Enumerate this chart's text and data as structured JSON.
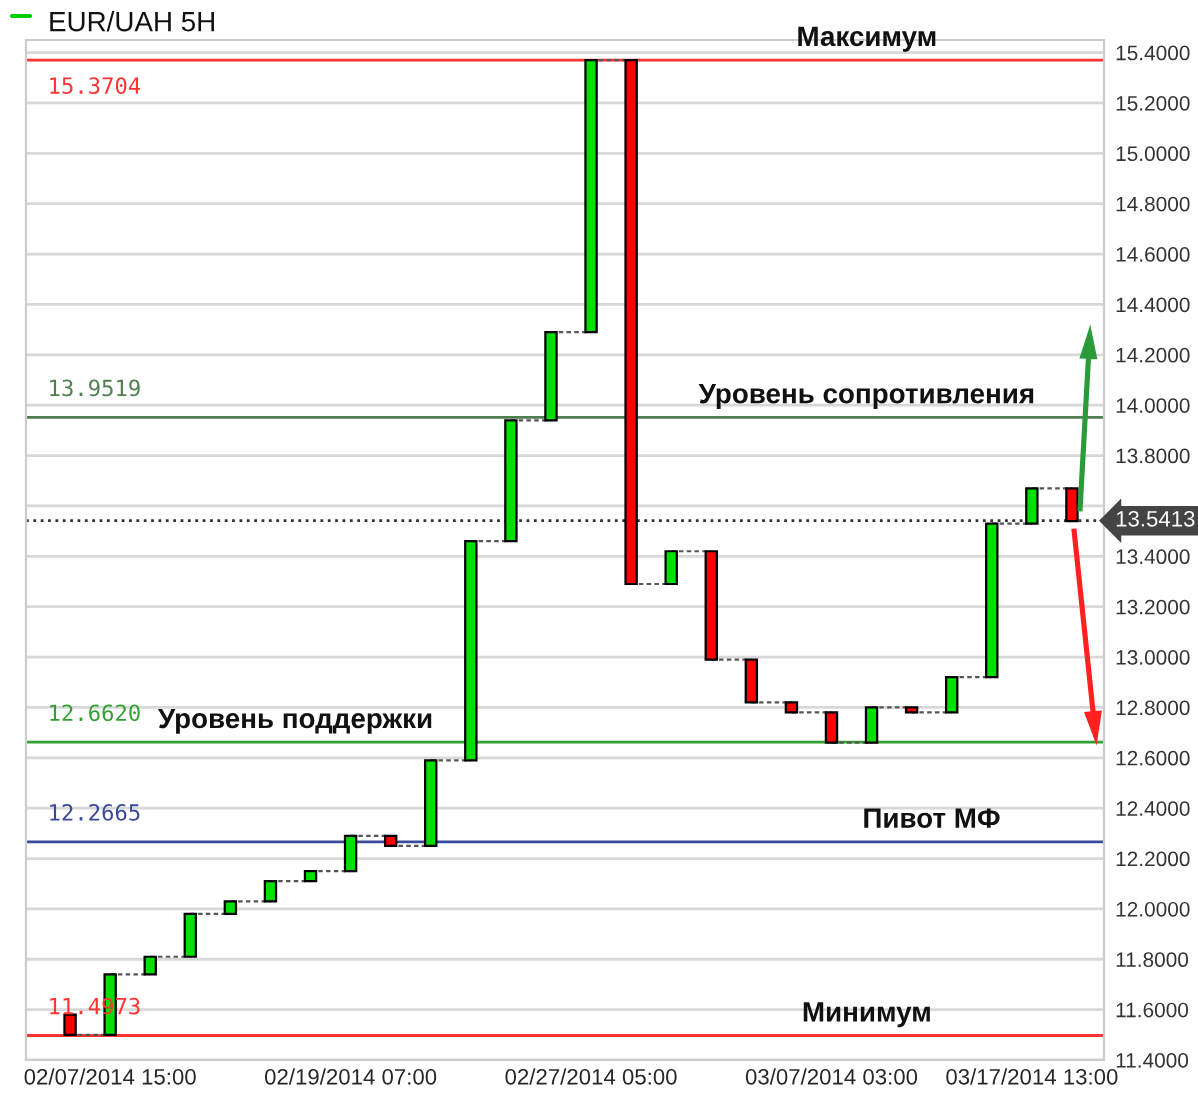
{
  "chart_data": {
    "type": "candlestick",
    "title": "EUR/UAH 5H",
    "categories": [
      null,
      "02/07/2014 15:00",
      null,
      null,
      null,
      null,
      null,
      "02/19/2014 07:00",
      null,
      null,
      null,
      null,
      null,
      "02/27/2014 05:00",
      null,
      null,
      null,
      null,
      null,
      "03/07/2014 03:00",
      null,
      null,
      null,
      null,
      "03/17/2014 13:00",
      null
    ],
    "ohlc": [
      [
        11.58,
        11.58,
        11.5,
        11.5
      ],
      [
        11.5,
        11.74,
        11.5,
        11.74
      ],
      [
        11.74,
        11.81,
        11.74,
        11.81
      ],
      [
        11.81,
        11.98,
        11.81,
        11.98
      ],
      [
        11.98,
        12.03,
        11.98,
        12.03
      ],
      [
        12.03,
        12.11,
        12.03,
        12.11
      ],
      [
        12.11,
        12.15,
        12.11,
        12.15
      ],
      [
        12.15,
        12.29,
        12.15,
        12.29
      ],
      [
        12.29,
        12.29,
        12.25,
        12.25
      ],
      [
        12.25,
        12.59,
        12.25,
        12.59
      ],
      [
        12.59,
        13.46,
        12.59,
        13.46
      ],
      [
        13.46,
        13.94,
        13.46,
        13.94
      ],
      [
        13.94,
        14.29,
        13.94,
        14.29
      ],
      [
        14.29,
        15.37,
        14.29,
        15.37
      ],
      [
        15.37,
        15.37,
        13.29,
        13.29
      ],
      [
        13.29,
        13.42,
        13.29,
        13.42
      ],
      [
        13.42,
        13.42,
        12.99,
        12.99
      ],
      [
        12.99,
        12.99,
        12.82,
        12.82
      ],
      [
        12.82,
        12.82,
        12.78,
        12.78
      ],
      [
        12.78,
        12.78,
        12.66,
        12.66
      ],
      [
        12.66,
        12.8,
        12.66,
        12.8
      ],
      [
        12.8,
        12.8,
        12.78,
        12.78
      ],
      [
        12.78,
        12.92,
        12.78,
        12.92
      ],
      [
        12.92,
        13.53,
        12.92,
        13.53
      ],
      [
        13.53,
        13.67,
        13.53,
        13.67
      ],
      [
        13.67,
        13.67,
        13.54,
        13.54
      ]
    ],
    "colors": [
      "#ff0000",
      "#00e000",
      "#00e000",
      "#00e000",
      "#00e000",
      "#00e000",
      "#00e000",
      "#00e000",
      "#ff0000",
      "#00e000",
      "#00e000",
      "#00e000",
      "#00e000",
      "#00e000",
      "#ff0000",
      "#00e000",
      "#ff0000",
      "#ff0000",
      "#ff0000",
      "#ff0000",
      "#00e000",
      "#ff0000",
      "#00e000",
      "#00e000",
      "#00e000",
      "#ff0000"
    ],
    "ylim": [
      11.4,
      15.45
    ],
    "yticks": [
      {
        "value": 11.4,
        "label": "11.4000"
      },
      {
        "value": 11.6,
        "label": "11.6000"
      },
      {
        "value": 11.8,
        "label": "11.8000"
      },
      {
        "value": 12.0,
        "label": "12.0000"
      },
      {
        "value": 12.2,
        "label": "12.2000"
      },
      {
        "value": 12.4,
        "label": "12.4000"
      },
      {
        "value": 12.6,
        "label": "12.6000"
      },
      {
        "value": 12.8,
        "label": "12.8000"
      },
      {
        "value": 13.0,
        "label": "13.0000"
      },
      {
        "value": 13.2,
        "label": "13.2000"
      },
      {
        "value": 13.4,
        "label": "13.4000"
      },
      {
        "value": 13.6,
        "label": null
      },
      {
        "value": 13.8,
        "label": "13.8000"
      },
      {
        "value": 14.0,
        "label": "14.0000"
      },
      {
        "value": 14.2,
        "label": "14.2000"
      },
      {
        "value": 14.4,
        "label": "14.4000"
      },
      {
        "value": 14.6,
        "label": "14.6000"
      },
      {
        "value": 14.8,
        "label": "14.8000"
      },
      {
        "value": 15.0,
        "label": "15.0000"
      },
      {
        "value": 15.2,
        "label": "15.2000"
      },
      {
        "value": 15.4,
        "label": "15.4000"
      }
    ],
    "grid": "y",
    "ref_lines": [
      {
        "axis": "y",
        "value": 15.3704,
        "label": "15.3704",
        "color": "#ff3333",
        "line_style": "solid"
      },
      {
        "axis": "y",
        "value": 13.9519,
        "label": "13.9519",
        "color": "#4f7f4f",
        "line_style": "solid"
      },
      {
        "axis": "y",
        "value": 13.5413,
        "label": "13.5413",
        "color": "#333333",
        "line_style": "dotted"
      },
      {
        "axis": "y",
        "value": 12.662,
        "label": "12.6620",
        "color": "#33a033",
        "line_style": "solid"
      },
      {
        "axis": "y",
        "value": 12.2665,
        "label": "12.2665",
        "color": "#3a4a9a",
        "line_style": "solid"
      },
      {
        "axis": "y",
        "value": 11.4973,
        "label": "11.4973",
        "color": "#ff3333",
        "line_style": "solid"
      }
    ],
    "annotations": [
      {
        "text": "Максимум",
        "y": 15.3704
      },
      {
        "text": "Уровень сопротивления",
        "y": 13.9519
      },
      {
        "text": "Уровень поддержки",
        "y": 12.662
      },
      {
        "text": "Пивот МФ",
        "y": 12.2665
      },
      {
        "text": "Минимум",
        "y": 11.4973
      }
    ]
  }
}
